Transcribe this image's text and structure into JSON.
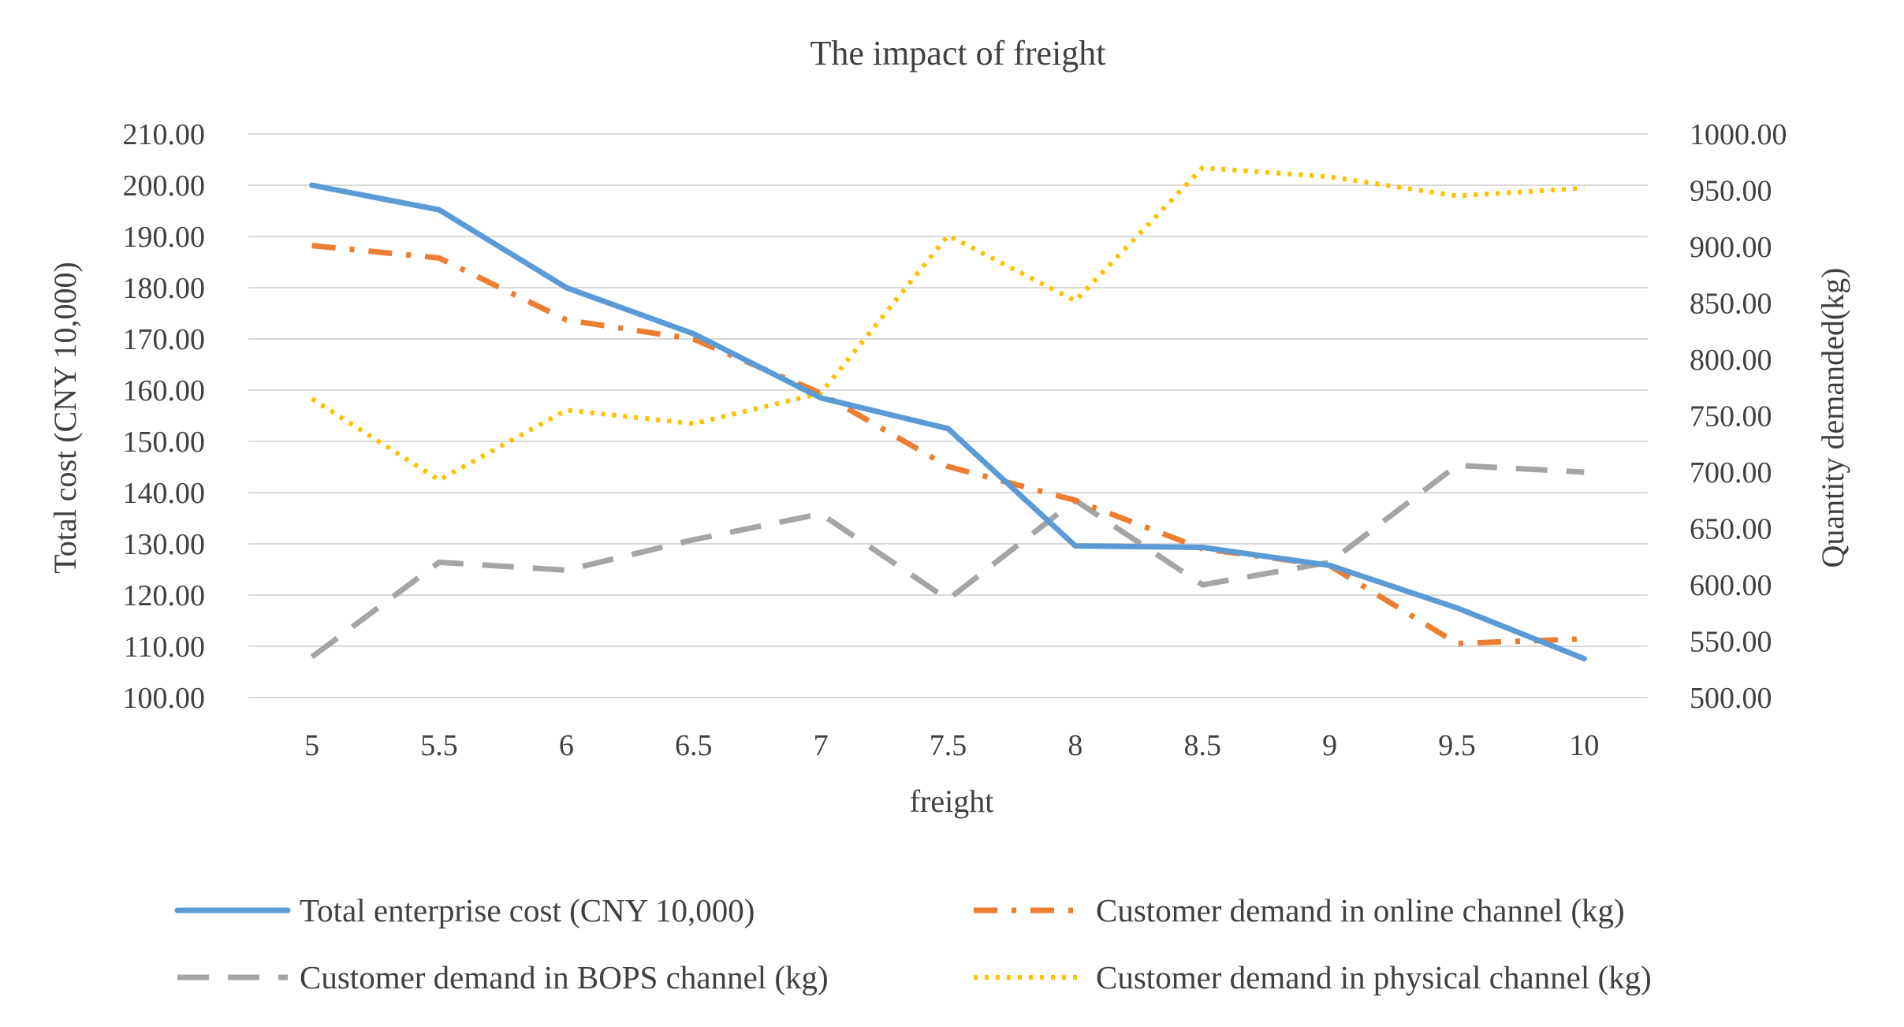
{
  "chart_data": {
    "type": "line",
    "title": "The impact of freight",
    "xlabel": "freight",
    "ylabel": "Total cost (CNY 10,000)",
    "y2label": "Quantity demanded(kg)",
    "categories": [
      "5",
      "5.5",
      "6",
      "6.5",
      "7",
      "7.5",
      "8",
      "8.5",
      "9",
      "9.5",
      "10"
    ],
    "ylim": [
      100,
      210
    ],
    "y2lim": [
      500,
      1000
    ],
    "yticks": [
      "100.00",
      "110.00",
      "120.00",
      "130.00",
      "140.00",
      "150.00",
      "160.00",
      "170.00",
      "180.00",
      "190.00",
      "200.00",
      "210.00"
    ],
    "y2ticks": [
      "500.00",
      "550.00",
      "600.00",
      "650.00",
      "700.00",
      "750.00",
      "800.00",
      "850.00",
      "900.00",
      "950.00",
      "1000.00"
    ],
    "grid": true,
    "legend_position": "bottom",
    "series": [
      {
        "name": "Total enterprise cost (CNY 10,000)",
        "axis": "left",
        "color": "#5B9BD5",
        "style": "solid",
        "values": [
          200,
          195.2,
          180,
          171,
          158.5,
          152.5,
          129.6,
          129.3,
          125.8,
          117.5,
          107.6
        ]
      },
      {
        "name": "Customer demand in online channel (kg)",
        "axis": "right",
        "color": "#ED7D31",
        "style": "dashdot",
        "values": [
          901,
          890,
          835,
          818,
          770,
          705,
          675,
          632,
          617,
          548,
          552
        ]
      },
      {
        "name": "Customer demand in BOPS channel (kg)",
        "axis": "right",
        "color": "#A5A5A5",
        "style": "dash",
        "values": [
          536,
          620,
          613,
          640,
          663,
          587,
          675,
          600,
          620,
          706,
          700
        ]
      },
      {
        "name": "Customer demand in physical channel (kg)",
        "axis": "right",
        "color": "#FFC000",
        "style": "dot",
        "values": [
          765,
          693,
          755,
          743,
          770,
          910,
          852,
          970,
          962,
          945,
          952
        ]
      }
    ]
  }
}
